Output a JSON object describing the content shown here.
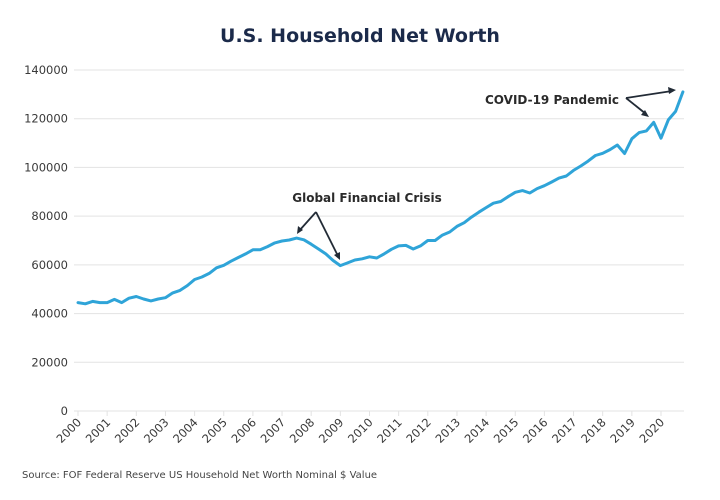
{
  "chart_data": {
    "type": "line",
    "title": "U.S. Household Net Worth",
    "xlabel": "",
    "ylabel": "",
    "source": "Source: FOF Federal Reserve US Household Net Worth Nominal $ Value",
    "ylim": [
      0,
      140000
    ],
    "xlim": [
      2000,
      2020.75
    ],
    "grid": true,
    "legend": "none",
    "y_ticks": [
      0,
      20000,
      40000,
      60000,
      80000,
      100000,
      120000,
      140000
    ],
    "y_tick_labels": [
      "0",
      "20000",
      "40000",
      "60000",
      "80000",
      "100000",
      "120000",
      "140000"
    ],
    "x_ticks": [
      2000,
      2001,
      2002,
      2003,
      2004,
      2005,
      2006,
      2007,
      2008,
      2009,
      2010,
      2011,
      2012,
      2013,
      2014,
      2015,
      2016,
      2017,
      2018,
      2019,
      2020
    ],
    "x_tick_labels": [
      "2000",
      "2001",
      "2002",
      "2003",
      "2004",
      "2005",
      "2006",
      "2007",
      "2008",
      "2009",
      "2010",
      "2011",
      "2012",
      "2013",
      "2014",
      "2015",
      "2016",
      "2017",
      "2018",
      "2019",
      "2020"
    ],
    "series": [
      {
        "name": "U.S. Household Net Worth",
        "color": "#2fa4d8",
        "x": [
          2000,
          2000.25,
          2000.5,
          2000.75,
          2001,
          2001.25,
          2001.5,
          2001.75,
          2002,
          2002.25,
          2002.5,
          2002.75,
          2003,
          2003.25,
          2003.5,
          2003.75,
          2004,
          2004.25,
          2004.5,
          2004.75,
          2005,
          2005.25,
          2005.5,
          2005.75,
          2006,
          2006.25,
          2006.5,
          2006.75,
          2007,
          2007.25,
          2007.5,
          2007.75,
          2008,
          2008.25,
          2008.5,
          2008.75,
          2009,
          2009.25,
          2009.5,
          2009.75,
          2010,
          2010.25,
          2010.5,
          2010.75,
          2011,
          2011.25,
          2011.5,
          2011.75,
          2012,
          2012.25,
          2012.5,
          2012.75,
          2013,
          2013.25,
          2013.5,
          2013.75,
          2014,
          2014.25,
          2014.5,
          2014.75,
          2015,
          2015.25,
          2015.5,
          2015.75,
          2016,
          2016.25,
          2016.5,
          2016.75,
          2017,
          2017.25,
          2017.5,
          2017.75,
          2018,
          2018.25,
          2018.5,
          2018.75,
          2019,
          2019.25,
          2019.5,
          2019.75,
          2020,
          2020.25,
          2020.5,
          2020.75
        ],
        "values": [
          44500,
          44000,
          45000,
          44500,
          44500,
          45800,
          44500,
          46300,
          47000,
          46000,
          45200,
          46000,
          46500,
          48500,
          49500,
          51500,
          54000,
          55000,
          56500,
          58800,
          59800,
          61500,
          63000,
          64500,
          66200,
          66200,
          67500,
          69000,
          69800,
          70200,
          71000,
          70300,
          68500,
          66500,
          64500,
          61800,
          59700,
          60800,
          62000,
          62500,
          63300,
          62800,
          64500,
          66400,
          67800,
          68000,
          66500,
          67800,
          70000,
          70000,
          72200,
          73500,
          75800,
          77300,
          79600,
          81600,
          83500,
          85300,
          86000,
          88000,
          89800,
          90500,
          89500,
          91300,
          92500,
          94000,
          95600,
          96500,
          98800,
          100600,
          102600,
          104900,
          105800,
          107300,
          109200,
          105700,
          111800,
          114300,
          115000,
          118500,
          112000,
          119500,
          123000,
          131000
        ]
      }
    ],
    "annotations": [
      {
        "text": "Global Financial Crisis",
        "points_to": [
          2007.4,
          2008.9
        ]
      },
      {
        "text": "COVID-19 Pandemic",
        "points_to": [
          2019.6,
          2020.65
        ]
      }
    ]
  }
}
